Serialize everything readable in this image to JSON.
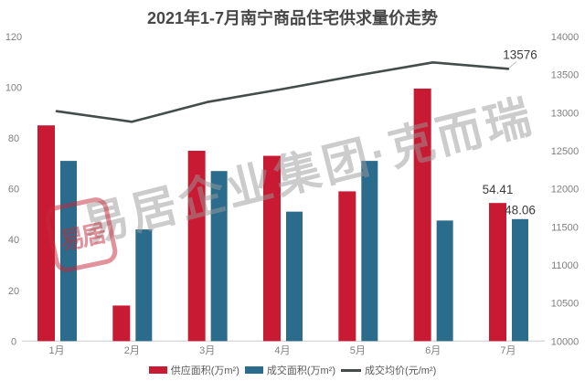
{
  "title": "2021年1-7月南宁商品住宅供求量价走势",
  "watermark": {
    "text": "易居企业集团·克而瑞",
    "stamp_text": "易居",
    "text_color": "#9a9a9a",
    "stamp_color": "#c62838"
  },
  "colors": {
    "supply": "#c91a33",
    "transaction": "#2b6c8c",
    "price_line": "#454c4c",
    "axis_text": "#7f7f7f",
    "label_text": "#3d3d3d",
    "baseline": "#d9d9d9",
    "title_text": "#474747",
    "connector": "#bfbfbf"
  },
  "legend": [
    {
      "label": "供应面积(万m²)",
      "type": "bar"
    },
    {
      "label": "成交面积(万m²)",
      "type": "bar"
    },
    {
      "label": "成交均价(元/m²)",
      "type": "line"
    }
  ],
  "chart_data": {
    "type": "bar",
    "subtype": "bar+line dual axis",
    "title": "2021年1-7月南宁商品住宅供求量价走势",
    "categories": [
      "1月",
      "2月",
      "3月",
      "4月",
      "5月",
      "6月",
      "7月"
    ],
    "series": [
      {
        "name": "供应面积(万m²)",
        "type": "bar",
        "axis": "left",
        "values": [
          85,
          14,
          75,
          73,
          59,
          99.5,
          54.41
        ],
        "point_labels": {
          "6": "54.41"
        }
      },
      {
        "name": "成交面积(万m²)",
        "type": "bar",
        "axis": "left",
        "values": [
          71,
          44,
          67,
          51,
          71,
          47.5,
          48.06
        ],
        "point_labels": {
          "6": "48.06"
        }
      },
      {
        "name": "成交均价(元/m²)",
        "type": "line",
        "axis": "right",
        "values": [
          13020,
          12880,
          13140,
          13310,
          13490,
          13660,
          13576
        ],
        "point_labels": {
          "6": "13576"
        }
      }
    ],
    "left_axis": {
      "min": 0,
      "max": 120,
      "ticks": [
        0,
        20,
        40,
        60,
        80,
        100,
        120
      ]
    },
    "right_axis": {
      "min": 10000,
      "max": 14000,
      "ticks": [
        10000,
        10500,
        11000,
        11500,
        12000,
        12500,
        13000,
        13500,
        14000
      ]
    },
    "grid": false,
    "legend_position": "bottom"
  }
}
